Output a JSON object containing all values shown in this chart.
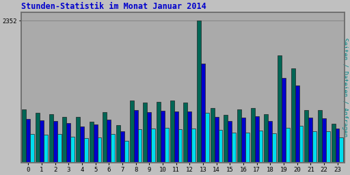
{
  "title": "Stunden-Statistik im Monat Januar 2014",
  "ylabel": "Seiten / Dateien / Anfragen",
  "xlabel_ticks": [
    0,
    1,
    2,
    3,
    4,
    5,
    6,
    7,
    8,
    9,
    10,
    11,
    12,
    13,
    14,
    15,
    16,
    17,
    18,
    19,
    20,
    21,
    22,
    23
  ],
  "ymax": 2352,
  "ytick_label": "2352",
  "fig_bg_color": "#c0c0c0",
  "plot_bg_color": "#aaaaaa",
  "title_color": "#0000cc",
  "ylabel_color": "#008888",
  "bar_color_green": "#006655",
  "bar_color_blue": "#0000cc",
  "bar_color_cyan": "#00ddee",
  "bar_edge_color": "#222222",
  "green": [
    880,
    830,
    800,
    760,
    760,
    680,
    840,
    620,
    1030,
    1000,
    1010,
    1030,
    1000,
    2352,
    900,
    790,
    880,
    910,
    800,
    1780,
    1560,
    870,
    870,
    640
  ],
  "blue": [
    720,
    700,
    690,
    660,
    600,
    630,
    715,
    515,
    875,
    840,
    855,
    845,
    845,
    1640,
    755,
    685,
    748,
    770,
    685,
    1400,
    1280,
    748,
    735,
    560
  ],
  "cyan": [
    480,
    460,
    480,
    435,
    405,
    415,
    470,
    360,
    555,
    565,
    578,
    558,
    568,
    830,
    548,
    502,
    492,
    526,
    482,
    580,
    612,
    524,
    515,
    416
  ]
}
